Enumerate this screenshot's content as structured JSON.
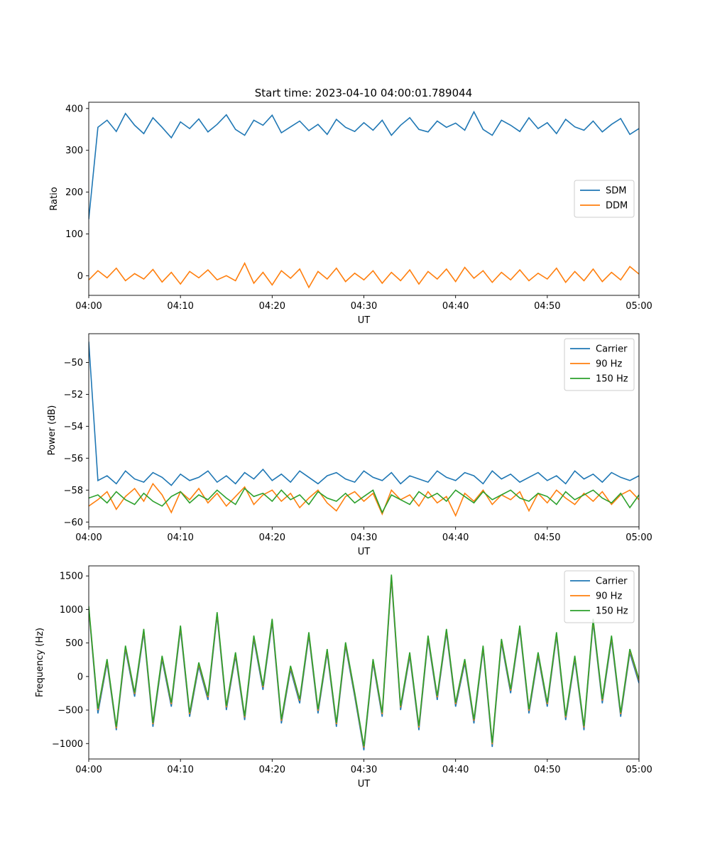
{
  "figure_title": "Start time: 2023-04-10 04:00:01.789044",
  "colors": {
    "tab_blue": "#1f77b4",
    "tab_orange": "#ff7f0e",
    "tab_green": "#2ca02c"
  },
  "chart_data": [
    {
      "type": "line",
      "title": "Start time: 2023-04-10 04:00:01.789044",
      "xlabel": "UT",
      "ylabel": "Ratio",
      "x_tick_labels": [
        "04:00",
        "04:10",
        "04:20",
        "04:30",
        "04:40",
        "04:50",
        "05:00"
      ],
      "y_tick_values": [
        0,
        100,
        200,
        300,
        400
      ],
      "xlim": [
        "04:00",
        "05:00"
      ],
      "ylim": [
        -47,
        415
      ],
      "grid": false,
      "legend_position": "center-right",
      "x": [
        "04:00",
        "04:01",
        "04:02",
        "04:03",
        "04:04",
        "04:05",
        "04:06",
        "04:07",
        "04:08",
        "04:09",
        "04:10",
        "04:11",
        "04:12",
        "04:13",
        "04:14",
        "04:15",
        "04:16",
        "04:17",
        "04:18",
        "04:19",
        "04:20",
        "04:21",
        "04:22",
        "04:23",
        "04:24",
        "04:25",
        "04:26",
        "04:27",
        "04:28",
        "04:29",
        "04:30",
        "04:31",
        "04:32",
        "04:33",
        "04:34",
        "04:35",
        "04:36",
        "04:37",
        "04:38",
        "04:39",
        "04:40",
        "04:41",
        "04:42",
        "04:43",
        "04:44",
        "04:45",
        "04:46",
        "04:47",
        "04:48",
        "04:49",
        "04:50",
        "04:51",
        "04:52",
        "04:53",
        "04:54",
        "04:55",
        "04:56",
        "04:57",
        "04:58",
        "04:59",
        "05:00"
      ],
      "series": [
        {
          "name": "SDM",
          "color": "#1f77b4",
          "values": [
            135,
            355,
            372,
            345,
            388,
            360,
            340,
            378,
            355,
            330,
            368,
            352,
            375,
            344,
            362,
            385,
            350,
            336,
            372,
            360,
            384,
            342,
            356,
            370,
            347,
            362,
            338,
            374,
            355,
            345,
            366,
            348,
            372,
            336,
            360,
            378,
            350,
            344,
            370,
            355,
            365,
            348,
            392,
            350,
            336,
            372,
            360,
            345,
            378,
            352,
            366,
            340,
            374,
            356,
            348,
            370,
            344,
            362,
            376,
            338,
            352
          ],
          "start_time": "04:00:01"
        },
        {
          "name": "DDM",
          "color": "#ff7f0e",
          "values": [
            -10,
            12,
            -5,
            18,
            -12,
            5,
            -8,
            15,
            -15,
            8,
            -20,
            10,
            -5,
            14,
            -10,
            0,
            -12,
            30,
            -18,
            8,
            -22,
            12,
            -6,
            16,
            -28,
            10,
            -8,
            18,
            -14,
            6,
            -10,
            12,
            -18,
            8,
            -12,
            14,
            -20,
            10,
            -8,
            16,
            -14,
            20,
            -6,
            12,
            -16,
            8,
            -10,
            14,
            -12,
            6,
            -8,
            18,
            -16,
            10,
            -12,
            16,
            -14,
            8,
            -10,
            22,
            4
          ]
        }
      ]
    },
    {
      "type": "line",
      "title": "",
      "xlabel": "UT",
      "ylabel": "Power (dB)",
      "x_tick_labels": [
        "04:00",
        "04:10",
        "04:20",
        "04:30",
        "04:40",
        "04:50",
        "05:00"
      ],
      "y_tick_values": [
        -60,
        -58,
        -56,
        -54,
        -52,
        -50
      ],
      "xlim": [
        "04:00",
        "05:00"
      ],
      "ylim": [
        -60.3,
        -48.2
      ],
      "grid": false,
      "legend_position": "top-right",
      "series": [
        {
          "name": "Carrier",
          "color": "#1f77b4",
          "values": [
            -48.7,
            -57.4,
            -57.1,
            -57.6,
            -56.8,
            -57.3,
            -57.5,
            -56.9,
            -57.2,
            -57.7,
            -57.0,
            -57.4,
            -57.2,
            -56.8,
            -57.5,
            -57.1,
            -57.6,
            -56.9,
            -57.3,
            -56.7,
            -57.4,
            -57.0,
            -57.5,
            -56.8,
            -57.2,
            -57.6,
            -57.1,
            -56.9,
            -57.3,
            -57.5,
            -56.8,
            -57.2,
            -57.4,
            -56.9,
            -57.6,
            -57.1,
            -57.3,
            -57.5,
            -56.8,
            -57.2,
            -57.4,
            -56.9,
            -57.1,
            -57.6,
            -56.8,
            -57.3,
            -57.0,
            -57.5,
            -57.2,
            -56.9,
            -57.4,
            -57.1,
            -57.6,
            -56.8,
            -57.3,
            -57.0,
            -57.5,
            -56.9,
            -57.2,
            -57.4,
            -57.1
          ]
        },
        {
          "name": "90 Hz",
          "color": "#ff7f0e",
          "values": [
            -59.0,
            -58.6,
            -58.1,
            -59.2,
            -58.4,
            -57.9,
            -58.7,
            -57.6,
            -58.3,
            -59.4,
            -58.1,
            -58.6,
            -57.9,
            -58.8,
            -58.2,
            -59.0,
            -58.4,
            -57.8,
            -58.9,
            -58.3,
            -58.0,
            -58.7,
            -58.2,
            -59.1,
            -58.5,
            -58.0,
            -58.8,
            -59.3,
            -58.4,
            -58.1,
            -58.7,
            -58.2,
            -59.5,
            -58.0,
            -58.6,
            -58.3,
            -59.0,
            -58.1,
            -58.8,
            -58.4,
            -59.6,
            -58.2,
            -58.7,
            -58.0,
            -58.9,
            -58.3,
            -58.6,
            -58.1,
            -59.3,
            -58.2,
            -58.8,
            -58.0,
            -58.5,
            -58.9,
            -58.2,
            -58.7,
            -58.1,
            -58.9,
            -58.3,
            -58.0,
            -58.6
          ]
        },
        {
          "name": "150 Hz",
          "color": "#2ca02c",
          "values": [
            -58.5,
            -58.3,
            -58.8,
            -58.1,
            -58.6,
            -58.9,
            -58.2,
            -58.7,
            -59.0,
            -58.4,
            -58.1,
            -58.8,
            -58.3,
            -58.6,
            -58.0,
            -58.5,
            -58.9,
            -57.9,
            -58.4,
            -58.2,
            -58.7,
            -58.0,
            -58.6,
            -58.3,
            -58.9,
            -58.1,
            -58.5,
            -58.7,
            -58.2,
            -58.8,
            -58.4,
            -58.0,
            -59.4,
            -58.3,
            -58.6,
            -58.9,
            -58.1,
            -58.5,
            -58.2,
            -58.7,
            -58.0,
            -58.4,
            -58.8,
            -58.1,
            -58.6,
            -58.3,
            -58.0,
            -58.5,
            -58.7,
            -58.2,
            -58.4,
            -58.9,
            -58.1,
            -58.6,
            -58.3,
            -58.0,
            -58.5,
            -58.8,
            -58.2,
            -59.1,
            -58.3
          ]
        }
      ]
    },
    {
      "type": "line",
      "title": "",
      "xlabel": "UT",
      "ylabel": "Frequency (Hz)",
      "x_tick_labels": [
        "04:00",
        "04:10",
        "04:20",
        "04:30",
        "04:40",
        "04:50",
        "05:00"
      ],
      "y_tick_values": [
        -1000,
        -500,
        0,
        500,
        1000,
        1500
      ],
      "xlim": [
        "04:00",
        "05:00"
      ],
      "ylim": [
        -1230,
        1650
      ],
      "grid": false,
      "legend_position": "top-right",
      "series": [
        {
          "name": "Carrier",
          "color": "#1f77b4",
          "values": [
            1000,
            -550,
            200,
            -800,
            400,
            -300,
            650,
            -750,
            250,
            -450,
            700,
            -600,
            150,
            -350,
            900,
            -500,
            300,
            -650,
            550,
            -200,
            800,
            -700,
            100,
            -400,
            600,
            -550,
            350,
            -750,
            450,
            -300,
            -1100,
            200,
            -600,
            1450,
            -500,
            300,
            -800,
            550,
            -350,
            650,
            -450,
            200,
            -700,
            400,
            -1050,
            500,
            -250,
            700,
            -550,
            300,
            -450,
            600,
            -650,
            250,
            -800,
            800,
            -400,
            550,
            -600,
            350,
            -100
          ]
        },
        {
          "name": "90 Hz",
          "color": "#ff7f0e",
          "values": [
            1030,
            -500,
            240,
            -770,
            440,
            -260,
            690,
            -710,
            290,
            -410,
            740,
            -560,
            190,
            -310,
            940,
            -460,
            340,
            -610,
            590,
            -160,
            840,
            -660,
            140,
            -360,
            640,
            -510,
            390,
            -710,
            490,
            -260,
            -1060,
            240,
            -560,
            1490,
            -460,
            340,
            -760,
            590,
            -310,
            690,
            -410,
            240,
            -660,
            440,
            -1010,
            540,
            -210,
            740,
            -510,
            340,
            -410,
            640,
            -610,
            290,
            -760,
            840,
            -360,
            590,
            -560,
            390,
            -60
          ]
        },
        {
          "name": "150 Hz",
          "color": "#2ca02c",
          "values": [
            1050,
            -480,
            260,
            -750,
            460,
            -240,
            710,
            -690,
            310,
            -390,
            760,
            -540,
            210,
            -290,
            960,
            -440,
            360,
            -590,
            610,
            -140,
            860,
            -640,
            160,
            -340,
            660,
            -490,
            410,
            -690,
            510,
            -240,
            -1040,
            260,
            -540,
            1520,
            -440,
            360,
            -740,
            610,
            -290,
            710,
            -390,
            260,
            -640,
            460,
            -990,
            560,
            -190,
            760,
            -490,
            360,
            -390,
            660,
            -590,
            310,
            -740,
            860,
            -340,
            610,
            -540,
            410,
            -40
          ]
        }
      ]
    }
  ]
}
